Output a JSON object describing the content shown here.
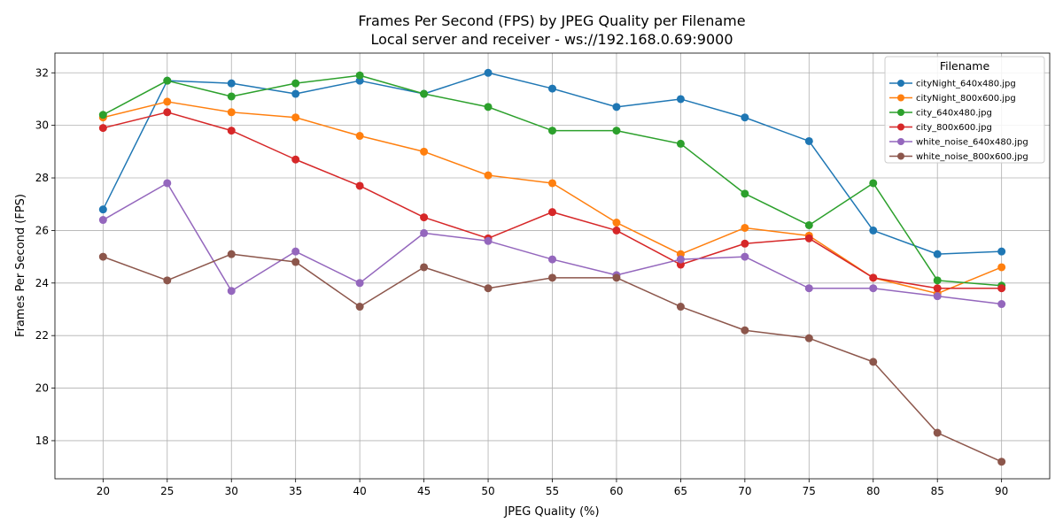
{
  "chart_data": {
    "type": "line",
    "title": "Frames Per Second (FPS) by JPEG Quality per Filename",
    "subtitle": "Local server and receiver - ws://192.168.0.69:9000",
    "xlabel": "JPEG Quality (%)",
    "ylabel": "Frames Per Second (FPS)",
    "x": [
      20,
      25,
      30,
      35,
      40,
      45,
      50,
      55,
      60,
      65,
      70,
      75,
      80,
      85,
      90
    ],
    "xticks": [
      20,
      25,
      30,
      35,
      40,
      45,
      50,
      55,
      60,
      65,
      70,
      75,
      80,
      85,
      90
    ],
    "yticks": [
      18,
      20,
      22,
      24,
      26,
      28,
      30,
      32
    ],
    "xlim": [
      16.25,
      93.75
    ],
    "ylim": [
      16.55,
      32.75
    ],
    "grid": true,
    "legend": {
      "title": "Filename",
      "placement": "top-right"
    },
    "series": [
      {
        "name": "cityNight_640x480.jpg",
        "color": "#1f77b4",
        "values": [
          26.8,
          31.7,
          31.6,
          31.2,
          31.7,
          31.2,
          32.0,
          31.4,
          30.7,
          31.0,
          30.3,
          29.4,
          26.0,
          25.1,
          25.2
        ]
      },
      {
        "name": "cityNight_800x600.jpg",
        "color": "#ff7f0e",
        "values": [
          30.3,
          30.9,
          30.5,
          30.3,
          29.6,
          29.0,
          28.1,
          27.8,
          26.3,
          25.1,
          26.1,
          25.8,
          24.2,
          23.6,
          24.6
        ]
      },
      {
        "name": "city_640x480.jpg",
        "color": "#2ca02c",
        "values": [
          30.4,
          31.7,
          31.1,
          31.6,
          31.9,
          31.2,
          30.7,
          29.8,
          29.8,
          29.3,
          27.4,
          26.2,
          27.8,
          24.1,
          23.9
        ]
      },
      {
        "name": "city_800x600.jpg",
        "color": "#d62728",
        "values": [
          29.9,
          30.5,
          29.8,
          28.7,
          27.7,
          26.5,
          25.7,
          26.7,
          26.0,
          24.7,
          25.5,
          25.7,
          24.2,
          23.8,
          23.8
        ]
      },
      {
        "name": "white_noise_640x480.jpg",
        "color": "#9467bd",
        "values": [
          26.4,
          27.8,
          23.7,
          25.2,
          24.0,
          25.9,
          25.6,
          24.9,
          24.3,
          24.9,
          25.0,
          23.8,
          23.8,
          23.5,
          23.2
        ]
      },
      {
        "name": "white_noise_800x600.jpg",
        "color": "#8c564b",
        "values": [
          25.0,
          24.1,
          25.1,
          24.8,
          23.1,
          24.6,
          23.8,
          24.2,
          24.2,
          23.1,
          22.2,
          21.9,
          21.0,
          18.3,
          17.2
        ]
      }
    ]
  }
}
